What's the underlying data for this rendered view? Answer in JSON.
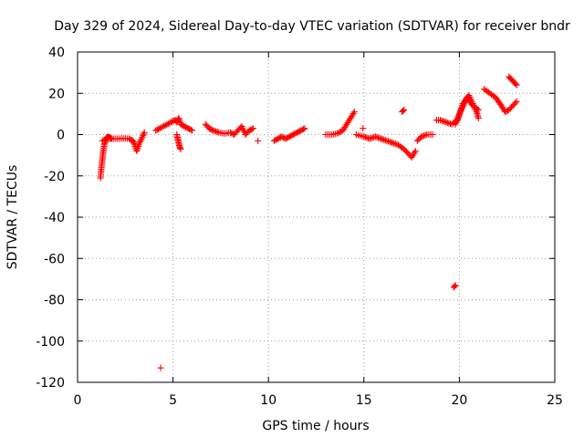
{
  "chart_data": {
    "type": "scatter",
    "title": "Day 329 of 2024, Sidereal Day-to-day VTEC variation (SDTVAR) for receiver bndr",
    "xlabel": "GPS time / hours",
    "ylabel": "SDTVAR / TECUs",
    "xlim": [
      0,
      25
    ],
    "ylim": [
      -120,
      40
    ],
    "xticks": [
      0,
      5,
      10,
      15,
      20,
      25
    ],
    "yticks": [
      -120,
      -100,
      -80,
      -60,
      -40,
      -20,
      0,
      20,
      40
    ],
    "grid": true,
    "marker": "plus",
    "color": "#ff0000",
    "segments": [
      {
        "x": [
          1.2,
          1.25,
          1.3,
          1.35,
          1.4,
          1.45,
          1.5,
          1.6,
          1.7,
          1.8
        ],
        "y": [
          -21,
          -16,
          -12,
          -8,
          -5,
          -3,
          -1.5,
          -1,
          -1.5,
          -2
        ]
      },
      {
        "x": [
          1.3,
          1.5,
          1.8,
          2.1,
          2.4,
          2.7,
          2.9,
          3.0,
          3.1,
          3.2,
          3.35,
          3.5
        ],
        "y": [
          -3,
          -2.5,
          -2,
          -2,
          -1.8,
          -2,
          -3,
          -5,
          -8,
          -5,
          -2,
          1
        ]
      },
      {
        "x": [
          4.1,
          4.3,
          4.6,
          4.9,
          5.1,
          5.2,
          5.3,
          5.4,
          5.6,
          5.8,
          6.0
        ],
        "y": [
          2,
          3,
          4.5,
          6,
          7,
          6,
          8,
          5,
          4,
          3,
          2
        ]
      },
      {
        "x": [
          5.2,
          5.25,
          5.3,
          5.35,
          5.4
        ],
        "y": [
          0,
          -2,
          -4,
          -6,
          -7
        ]
      },
      {
        "x": [
          4.35
        ],
        "y": [
          -113
        ]
      },
      {
        "x": [
          6.7,
          6.9,
          7.1,
          7.4,
          7.7,
          8.0,
          8.2,
          8.4,
          8.6,
          8.8,
          9.0,
          9.2
        ],
        "y": [
          5,
          3,
          2,
          1,
          0.5,
          1,
          0,
          2,
          4,
          0,
          2,
          3
        ]
      },
      {
        "x": [
          9.45
        ],
        "y": [
          -3
        ]
      },
      {
        "x": [
          10.3,
          10.5,
          10.7,
          10.9,
          11.1,
          11.3,
          11.5,
          11.7,
          11.9
        ],
        "y": [
          -3,
          -2,
          -1,
          -2,
          -1,
          0,
          1,
          2,
          3
        ]
      },
      {
        "x": [
          13.0,
          13.3,
          13.6,
          13.9,
          14.1,
          14.3,
          14.5
        ],
        "y": [
          0,
          0,
          0.5,
          2,
          5,
          8,
          11
        ]
      },
      {
        "x": [
          14.6,
          15.0,
          15.3,
          15.6,
          15.9,
          16.2,
          16.5,
          16.8,
          17.1,
          17.3,
          17.5,
          17.7
        ],
        "y": [
          0,
          -1,
          -2,
          -1,
          -2,
          -3,
          -4,
          -5,
          -7,
          -9,
          -11,
          -8
        ]
      },
      {
        "x": [
          14.95
        ],
        "y": [
          3
        ]
      },
      {
        "x": [
          17.0,
          17.1
        ],
        "y": [
          11,
          12
        ]
      },
      {
        "x": [
          17.8,
          18.0,
          18.3,
          18.6
        ],
        "y": [
          -3,
          -1,
          0,
          0
        ]
      },
      {
        "x": [
          18.8,
          19.0,
          19.3,
          19.6,
          19.9,
          20.1,
          20.3,
          20.5,
          20.7,
          20.9,
          21.0
        ],
        "y": [
          7,
          7,
          6,
          5,
          7,
          12,
          16,
          19,
          15,
          11,
          8
        ]
      },
      {
        "x": [
          19.7,
          19.8
        ],
        "y": [
          -74,
          -73
        ]
      },
      {
        "x": [
          19.8,
          20.0,
          20.2,
          20.4,
          20.7,
          21.0
        ],
        "y": [
          5,
          10,
          15,
          18,
          14,
          12
        ]
      },
      {
        "x": [
          21.3,
          21.6,
          21.9,
          22.2,
          22.4,
          22.6,
          22.8,
          23.0
        ],
        "y": [
          22,
          20,
          18,
          14,
          11,
          12,
          14,
          16
        ]
      },
      {
        "x": [
          22.6,
          22.7,
          22.8,
          22.9,
          23.0
        ],
        "y": [
          28,
          27,
          26,
          25,
          24
        ]
      }
    ]
  }
}
